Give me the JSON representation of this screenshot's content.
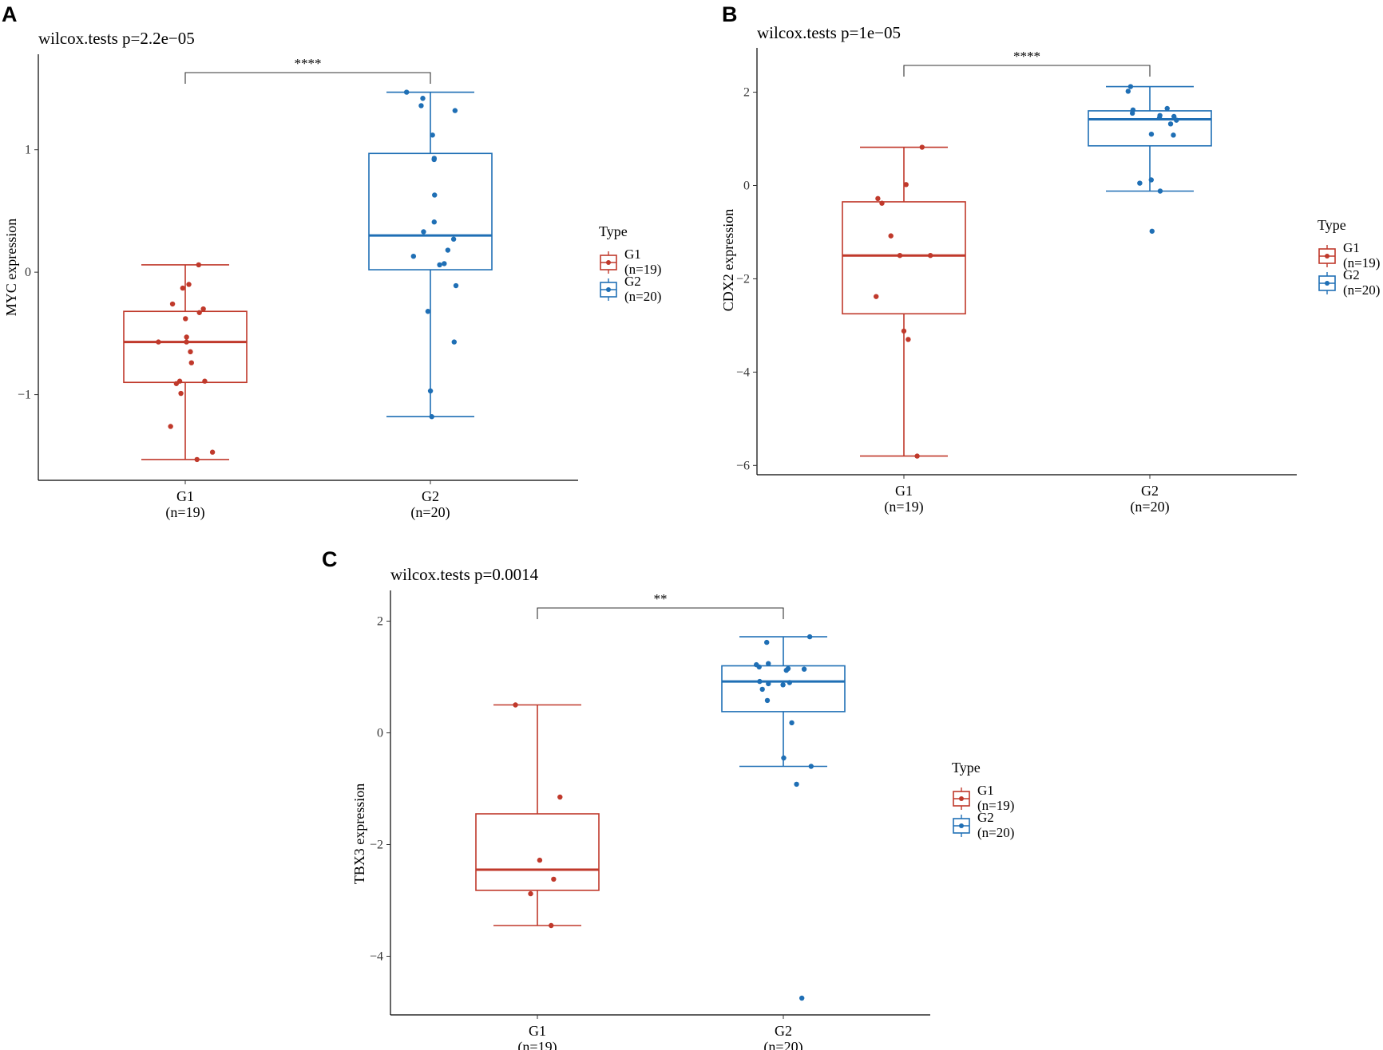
{
  "colors": {
    "G1": "#c0392b",
    "G2": "#1f6fb5"
  },
  "chart_data": [
    {
      "type": "box",
      "panel": "A",
      "title": "wilcox.tests p=2.2e−05",
      "ylabel": "MYC expression",
      "ylim": [
        -1.7,
        1.78
      ],
      "yticks": [
        {
          "v": 1,
          "t": "1"
        },
        {
          "v": 0,
          "t": "0"
        },
        {
          "v": -1,
          "t": "−1"
        }
      ],
      "categories": [
        {
          "name": "G1",
          "n": "(n=19)"
        },
        {
          "name": "G2",
          "n": "(n=20)"
        }
      ],
      "significance": "****",
      "legend": {
        "title": "Type",
        "items": [
          {
            "name": "G1",
            "n": "(n=19)"
          },
          {
            "name": "G2",
            "n": "(n=20)"
          }
        ]
      },
      "boxes": [
        {
          "group": "G1",
          "min": -1.53,
          "q1": -0.9,
          "median": -0.57,
          "q3": -0.32,
          "max": 0.06,
          "points": [
            0.06,
            -0.1,
            -0.13,
            -0.26,
            -0.3,
            -0.33,
            -0.38,
            -0.53,
            -0.57,
            -0.57,
            -0.65,
            -0.74,
            -0.89,
            -0.89,
            -0.91,
            -0.99,
            -1.26,
            -1.47,
            -1.53
          ]
        },
        {
          "group": "G2",
          "min": -1.18,
          "q1": 0.02,
          "median": 0.3,
          "q3": 0.97,
          "max": 1.47,
          "points": [
            1.47,
            1.42,
            1.36,
            1.32,
            1.12,
            0.93,
            0.92,
            0.63,
            0.41,
            0.33,
            0.27,
            0.18,
            0.13,
            0.07,
            0.06,
            -0.11,
            -0.32,
            -0.57,
            -0.97,
            -1.18
          ]
        }
      ]
    },
    {
      "type": "box",
      "panel": "B",
      "title": "wilcox.tests p=1e−05",
      "ylabel": "CDX2 expression",
      "ylim": [
        -6.2,
        2.95
      ],
      "yticks": [
        {
          "v": 2,
          "t": "2"
        },
        {
          "v": 0,
          "t": "0"
        },
        {
          "v": -2,
          "t": "−2"
        },
        {
          "v": -4,
          "t": "−4"
        },
        {
          "v": -6,
          "t": "−6"
        }
      ],
      "categories": [
        {
          "name": "G1",
          "n": "(n=19)"
        },
        {
          "name": "G2",
          "n": "(n=20)"
        }
      ],
      "significance": "****",
      "legend": {
        "title": "Type",
        "items": [
          {
            "name": "G1",
            "n": "(n=19)"
          },
          {
            "name": "G2",
            "n": "(n=20)"
          }
        ]
      },
      "boxes": [
        {
          "group": "G1",
          "min": -5.8,
          "q1": -2.75,
          "median": -1.5,
          "q3": -0.35,
          "max": 0.82,
          "points": [
            0.82,
            0.02,
            -0.28,
            -0.38,
            -1.08,
            -1.5,
            -1.5,
            -2.38,
            -3.12,
            -3.3,
            -5.8
          ]
        },
        {
          "group": "G2",
          "min": -0.12,
          "q1": 0.85,
          "median": 1.42,
          "q3": 1.6,
          "max": 2.12,
          "points": [
            2.12,
            2.02,
            1.65,
            1.62,
            1.55,
            1.5,
            1.48,
            1.45,
            1.4,
            1.32,
            1.1,
            1.08,
            0.12,
            0.05,
            -0.12,
            -0.98
          ]
        }
      ]
    },
    {
      "type": "box",
      "panel": "C",
      "title": "wilcox.tests p=0.0014",
      "ylabel": "TBX3 expression",
      "ylim": [
        -5.05,
        2.55
      ],
      "yticks": [
        {
          "v": 2,
          "t": "2"
        },
        {
          "v": 0,
          "t": "0"
        },
        {
          "v": -2,
          "t": "−2"
        },
        {
          "v": -4,
          "t": "−4"
        }
      ],
      "categories": [
        {
          "name": "G1",
          "n": "(n=19)"
        },
        {
          "name": "G2",
          "n": "(n=20)"
        }
      ],
      "significance": "**",
      "legend": {
        "title": "Type",
        "items": [
          {
            "name": "G1",
            "n": "(n=19)"
          },
          {
            "name": "G2",
            "n": "(n=20)"
          }
        ]
      },
      "boxes": [
        {
          "group": "G1",
          "min": -3.45,
          "q1": -2.82,
          "median": -2.45,
          "q3": -1.45,
          "max": 0.5,
          "points": [
            0.5,
            -1.15,
            -2.28,
            -2.62,
            -2.88,
            -3.45
          ]
        },
        {
          "group": "G2",
          "min": -0.6,
          "q1": 0.38,
          "median": 0.92,
          "q3": 1.2,
          "max": 1.72,
          "points": [
            1.72,
            1.62,
            1.24,
            1.22,
            1.18,
            1.15,
            1.14,
            1.12,
            0.92,
            0.9,
            0.88,
            0.86,
            0.78,
            0.58,
            0.18,
            -0.45,
            -0.6,
            -0.92,
            -4.75
          ]
        }
      ]
    }
  ]
}
